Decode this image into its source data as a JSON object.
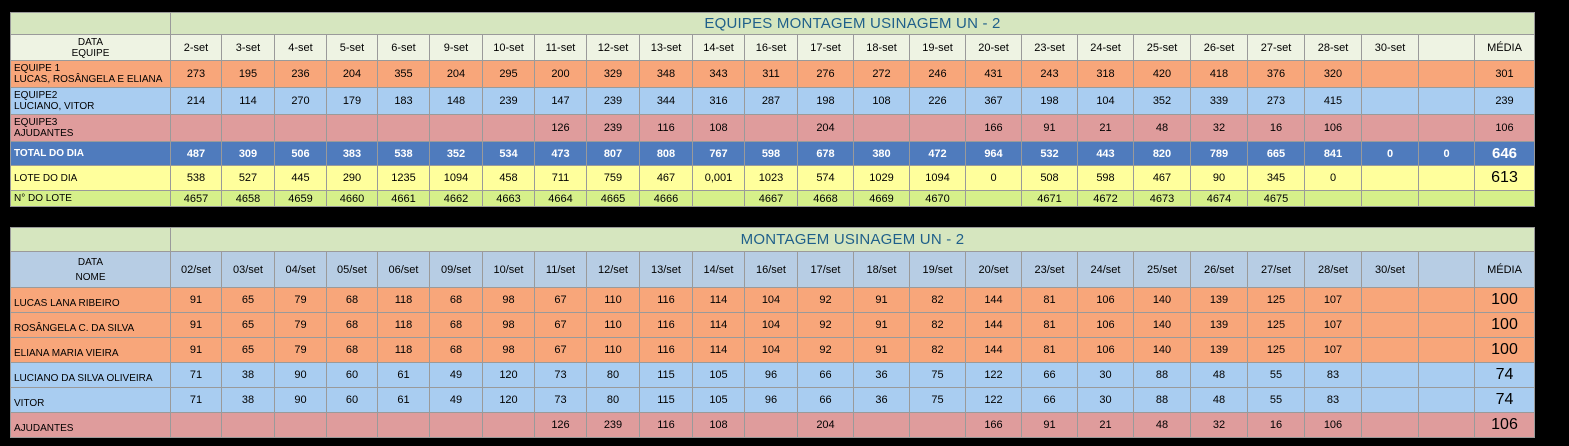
{
  "table1": {
    "title": "EQUIPES MONTAGEM USINAGEM UN - 2",
    "header_data": "DATA",
    "header_equipe": "EQUIPE",
    "dates": [
      "2-set",
      "3-set",
      "4-set",
      "5-set",
      "6-set",
      "9-set",
      "10-set",
      "11-set",
      "12-set",
      "13-set",
      "14-set",
      "16-set",
      "17-set",
      "18-set",
      "19-set",
      "20-set",
      "23-set",
      "24-set",
      "25-set",
      "26-set",
      "27-set",
      "28-set",
      "30-set",
      ""
    ],
    "media_label": "MÉDIA",
    "rows": [
      {
        "l1": "EQUIPE 1",
        "l2": "LUCAS, ROSÂNGELA E ELIANA",
        "vals": [
          "273",
          "195",
          "236",
          "204",
          "355",
          "204",
          "295",
          "200",
          "329",
          "348",
          "343",
          "311",
          "276",
          "272",
          "246",
          "431",
          "243",
          "318",
          "420",
          "418",
          "376",
          "320",
          "",
          ""
        ],
        "avg": "301"
      },
      {
        "l1": "EQUIPE2",
        "l2": "LUCIANO, VITOR",
        "vals": [
          "214",
          "114",
          "270",
          "179",
          "183",
          "148",
          "239",
          "147",
          "239",
          "344",
          "316",
          "287",
          "198",
          "108",
          "226",
          "367",
          "198",
          "104",
          "352",
          "339",
          "273",
          "415",
          "",
          ""
        ],
        "avg": "239"
      },
      {
        "l1": "EQUIPE3",
        "l2": "AJUDANTES",
        "vals": [
          "",
          "",
          "",
          "",
          "",
          "",
          "",
          "126",
          "239",
          "116",
          "108",
          "",
          "204",
          "",
          "",
          "166",
          "91",
          "21",
          "48",
          "32",
          "16",
          "106",
          "",
          ""
        ],
        "avg": "106"
      }
    ],
    "total": {
      "label": "TOTAL DO DIA",
      "vals": [
        "487",
        "309",
        "506",
        "383",
        "538",
        "352",
        "534",
        "473",
        "807",
        "808",
        "767",
        "598",
        "678",
        "380",
        "472",
        "964",
        "532",
        "443",
        "820",
        "789",
        "665",
        "841",
        "0",
        "0"
      ],
      "avg": "646"
    },
    "lote": {
      "label": "LOTE DO DIA",
      "vals": [
        "538",
        "527",
        "445",
        "290",
        "1235",
        "1094",
        "458",
        "711",
        "759",
        "467",
        "0,001",
        "1023",
        "574",
        "1029",
        "1094",
        "0",
        "508",
        "598",
        "467",
        "90",
        "345",
        "0",
        "",
        ""
      ],
      "avg": "613"
    },
    "nlote": {
      "label": "N° DO LOTE",
      "vals": [
        "4657",
        "4658",
        "4659",
        "4660",
        "4661",
        "4662",
        "4663",
        "4664",
        "4665",
        "4666",
        "",
        "4667",
        "4668",
        "4669",
        "4670",
        "",
        "4671",
        "4672",
        "4673",
        "4674",
        "4675",
        "",
        "",
        ""
      ],
      "avg": ""
    }
  },
  "table2": {
    "title": "MONTAGEM USINAGEM UN - 2",
    "header_data": "DATA",
    "header_nome": "NOME",
    "dates": [
      "02/set",
      "03/set",
      "04/set",
      "05/set",
      "06/set",
      "09/set",
      "10/set",
      "11/set",
      "12/set",
      "13/set",
      "14/set",
      "16/set",
      "17/set",
      "18/set",
      "19/set",
      "20/set",
      "23/set",
      "24/set",
      "25/set",
      "26/set",
      "27/set",
      "28/set",
      "30/set",
      ""
    ],
    "media_label": "MÉDIA",
    "rows": [
      {
        "name": "LUCAS LANA RIBEIRO",
        "vals": [
          "91",
          "65",
          "79",
          "68",
          "118",
          "68",
          "98",
          "67",
          "110",
          "116",
          "114",
          "104",
          "92",
          "91",
          "82",
          "144",
          "81",
          "106",
          "140",
          "139",
          "125",
          "107",
          "",
          ""
        ],
        "avg": "100"
      },
      {
        "name": "ROSÂNGELA C. DA SILVA",
        "vals": [
          "91",
          "65",
          "79",
          "68",
          "118",
          "68",
          "98",
          "67",
          "110",
          "116",
          "114",
          "104",
          "92",
          "91",
          "82",
          "144",
          "81",
          "106",
          "140",
          "139",
          "125",
          "107",
          "",
          ""
        ],
        "avg": "100"
      },
      {
        "name": "ELIANA MARIA VIEIRA",
        "vals": [
          "91",
          "65",
          "79",
          "68",
          "118",
          "68",
          "98",
          "67",
          "110",
          "116",
          "114",
          "104",
          "92",
          "91",
          "82",
          "144",
          "81",
          "106",
          "140",
          "139",
          "125",
          "107",
          "",
          ""
        ],
        "avg": "100"
      },
      {
        "name": "LUCIANO DA SILVA OLIVEIRA",
        "vals": [
          "71",
          "38",
          "90",
          "60",
          "61",
          "49",
          "120",
          "73",
          "80",
          "115",
          "105",
          "96",
          "66",
          "36",
          "75",
          "122",
          "66",
          "30",
          "88",
          "48",
          "55",
          "83",
          "",
          ""
        ],
        "avg": "74"
      },
      {
        "name": "VITOR",
        "vals": [
          "71",
          "38",
          "90",
          "60",
          "61",
          "49",
          "120",
          "73",
          "80",
          "115",
          "105",
          "96",
          "66",
          "36",
          "75",
          "122",
          "66",
          "30",
          "88",
          "48",
          "55",
          "83",
          "",
          ""
        ],
        "avg": "74"
      },
      {
        "name": "AJUDANTES",
        "vals": [
          "",
          "",
          "",
          "",
          "",
          "",
          "",
          "126",
          "239",
          "116",
          "108",
          "",
          "204",
          "",
          "",
          "166",
          "91",
          "21",
          "48",
          "32",
          "16",
          "106",
          "",
          ""
        ],
        "avg": "106"
      }
    ]
  },
  "colors": {
    "title_bg": "#d6e6bf",
    "orange": "#f8a67a",
    "blue": "#a9cdf1",
    "pink": "#df9c9c",
    "total": "#4f7bbd",
    "yellow": "#ffff9c",
    "lime": "#d6f08a",
    "header2": "#b7cde4"
  }
}
